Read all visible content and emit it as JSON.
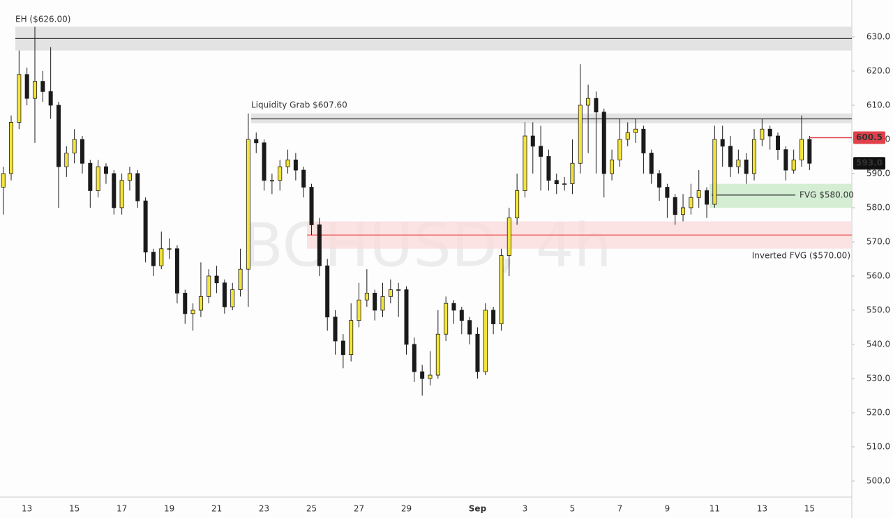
{
  "chart_data": {
    "type": "candlestick",
    "watermark": "BCHUSD, 4h",
    "categories": [
      null,
      null,
      null,
      "13",
      null,
      null,
      null,
      null,
      null,
      "15",
      null,
      null,
      null,
      null,
      null,
      "17",
      null,
      null,
      null,
      null,
      null,
      "19",
      null,
      null,
      null,
      null,
      null,
      "21",
      null,
      null,
      null,
      null,
      null,
      "23",
      null,
      null,
      null,
      null,
      null,
      "25",
      null,
      null,
      null,
      null,
      null,
      "27",
      null,
      null,
      null,
      null,
      null,
      "29",
      null,
      null,
      null,
      null,
      null,
      null,
      null,
      null,
      "Sep",
      null,
      null,
      null,
      null,
      null,
      "3",
      null,
      null,
      null,
      null,
      null,
      "5",
      null,
      null,
      null,
      null,
      null,
      "7",
      null,
      null,
      null,
      null,
      null,
      "9",
      null,
      null,
      null,
      null,
      null,
      "11",
      null,
      null,
      null,
      null,
      null,
      "13",
      null,
      null,
      null,
      null,
      null,
      "15"
    ],
    "open": [
      586,
      590,
      605,
      619,
      612,
      617,
      614,
      610,
      592,
      596,
      600,
      593,
      585,
      592,
      590,
      580,
      588,
      590,
      582,
      567,
      563,
      568,
      568,
      555,
      549,
      550,
      554,
      560,
      558,
      551,
      556,
      562,
      600,
      599,
      588,
      588,
      592,
      594,
      591,
      586,
      575,
      563,
      548,
      541,
      537,
      547,
      553,
      555,
      550,
      554,
      556,
      556,
      540,
      532,
      530,
      531,
      543,
      552,
      550,
      547,
      543,
      532,
      550,
      546,
      566,
      577,
      585,
      601,
      598,
      595,
      588,
      587,
      587,
      593,
      610,
      612,
      608,
      590,
      594,
      600,
      602,
      603,
      596,
      590,
      586,
      583,
      578,
      580,
      583,
      585,
      581,
      600,
      598,
      592,
      594,
      590,
      600,
      603,
      601,
      597,
      591,
      594,
      600
    ],
    "high": [
      592,
      607,
      626,
      621,
      633,
      620,
      627,
      611,
      598,
      603,
      601,
      594,
      594,
      593,
      591,
      590,
      592,
      591,
      583,
      568,
      573,
      571,
      569,
      556,
      552,
      564,
      562,
      563,
      559,
      558,
      568,
      607.6,
      602,
      600,
      590,
      594,
      597,
      596,
      592,
      587,
      577,
      565,
      550,
      543,
      552,
      558,
      562,
      556,
      558,
      559,
      558,
      557,
      542,
      534,
      538,
      550,
      554,
      553,
      551,
      548,
      545,
      552,
      551,
      568,
      580,
      590,
      605,
      605,
      604,
      597,
      590,
      589,
      600,
      622,
      616,
      614,
      609,
      597,
      606,
      605,
      606,
      604,
      597,
      591,
      587,
      584,
      584,
      587,
      591,
      586,
      604,
      604,
      601,
      597,
      596,
      603,
      606,
      604,
      602,
      598,
      597,
      607,
      601
    ],
    "low": [
      578,
      588,
      603,
      610,
      599,
      611,
      606,
      580,
      589,
      593,
      590,
      580,
      583,
      587,
      578,
      578,
      585,
      580,
      564,
      560,
      562,
      565,
      552,
      546,
      544,
      548,
      552,
      555,
      549,
      550,
      554,
      551,
      596,
      585,
      584,
      585,
      590,
      588,
      583,
      572,
      560,
      544,
      537,
      533,
      535,
      545,
      551,
      547,
      548,
      552,
      548,
      537,
      529,
      525,
      528,
      530,
      541,
      546,
      543,
      540,
      530,
      531,
      543,
      544,
      560,
      575,
      583,
      590,
      585,
      585,
      584,
      585,
      584,
      590,
      596,
      590,
      583,
      588,
      592,
      598,
      599,
      590,
      587,
      582,
      577,
      575,
      576,
      578,
      580,
      577,
      580,
      592,
      589,
      590,
      587,
      588,
      598,
      597,
      594,
      588,
      590,
      592,
      591
    ],
    "close": [
      590,
      605,
      619,
      612,
      617,
      614,
      610,
      592,
      596,
      600,
      593,
      585,
      592,
      590,
      580,
      588,
      590,
      582,
      567,
      563,
      568,
      568,
      555,
      549,
      550,
      554,
      560,
      558,
      551,
      556,
      562,
      600,
      599,
      588,
      588,
      592,
      594,
      591,
      586,
      575,
      563,
      548,
      541,
      537,
      547,
      553,
      555,
      550,
      554,
      556,
      556,
      540,
      532,
      530,
      531,
      543,
      552,
      550,
      547,
      543,
      532,
      550,
      546,
      566,
      577,
      585,
      601,
      598,
      595,
      588,
      587,
      587,
      593,
      610,
      612,
      608,
      590,
      594,
      600,
      602,
      603,
      596,
      590,
      586,
      583,
      578,
      580,
      583,
      585,
      581,
      600,
      598,
      592,
      594,
      590,
      600,
      603,
      601,
      597,
      591,
      594,
      600,
      593
    ],
    "up_color": "#f3e43a",
    "down_color": "#1a1a1a",
    "ylim": [
      495.3,
      640.8
    ],
    "yticks": [
      {
        "value": 500,
        "label": "500.0"
      },
      {
        "value": 510,
        "label": "510.0"
      },
      {
        "value": 520,
        "label": "520.0"
      },
      {
        "value": 530,
        "label": "530.0"
      },
      {
        "value": 540,
        "label": "540.0"
      },
      {
        "value": 550,
        "label": "550.0"
      },
      {
        "value": 560,
        "label": "560.0"
      },
      {
        "value": 570,
        "label": "570.0"
      },
      {
        "value": 580,
        "label": "580.0"
      },
      {
        "value": 590,
        "label": "590.0"
      },
      {
        "value": 600,
        "label": "600.0"
      },
      {
        "value": 610,
        "label": "610.0"
      },
      {
        "value": 620,
        "label": "620.0"
      },
      {
        "value": 630,
        "label": "630.0"
      }
    ],
    "annotations": [
      {
        "label": "EH ($626.00)",
        "zone": [
          626,
          633
        ],
        "line": 629.5
      },
      {
        "label": "Liquidity Grab $607.60",
        "zone": [
          604.7,
          607.6
        ],
        "line": 606
      },
      {
        "label": "FVG $580.00",
        "zone": [
          580,
          587
        ],
        "line": 583.7
      },
      {
        "label": "Inverted FVG ($570.00)",
        "zone": [
          568,
          576
        ],
        "line": 572
      }
    ],
    "price_line": {
      "value": 600.5,
      "label": "600.5"
    },
    "last_price": {
      "value": 593,
      "label": "593.0"
    }
  }
}
